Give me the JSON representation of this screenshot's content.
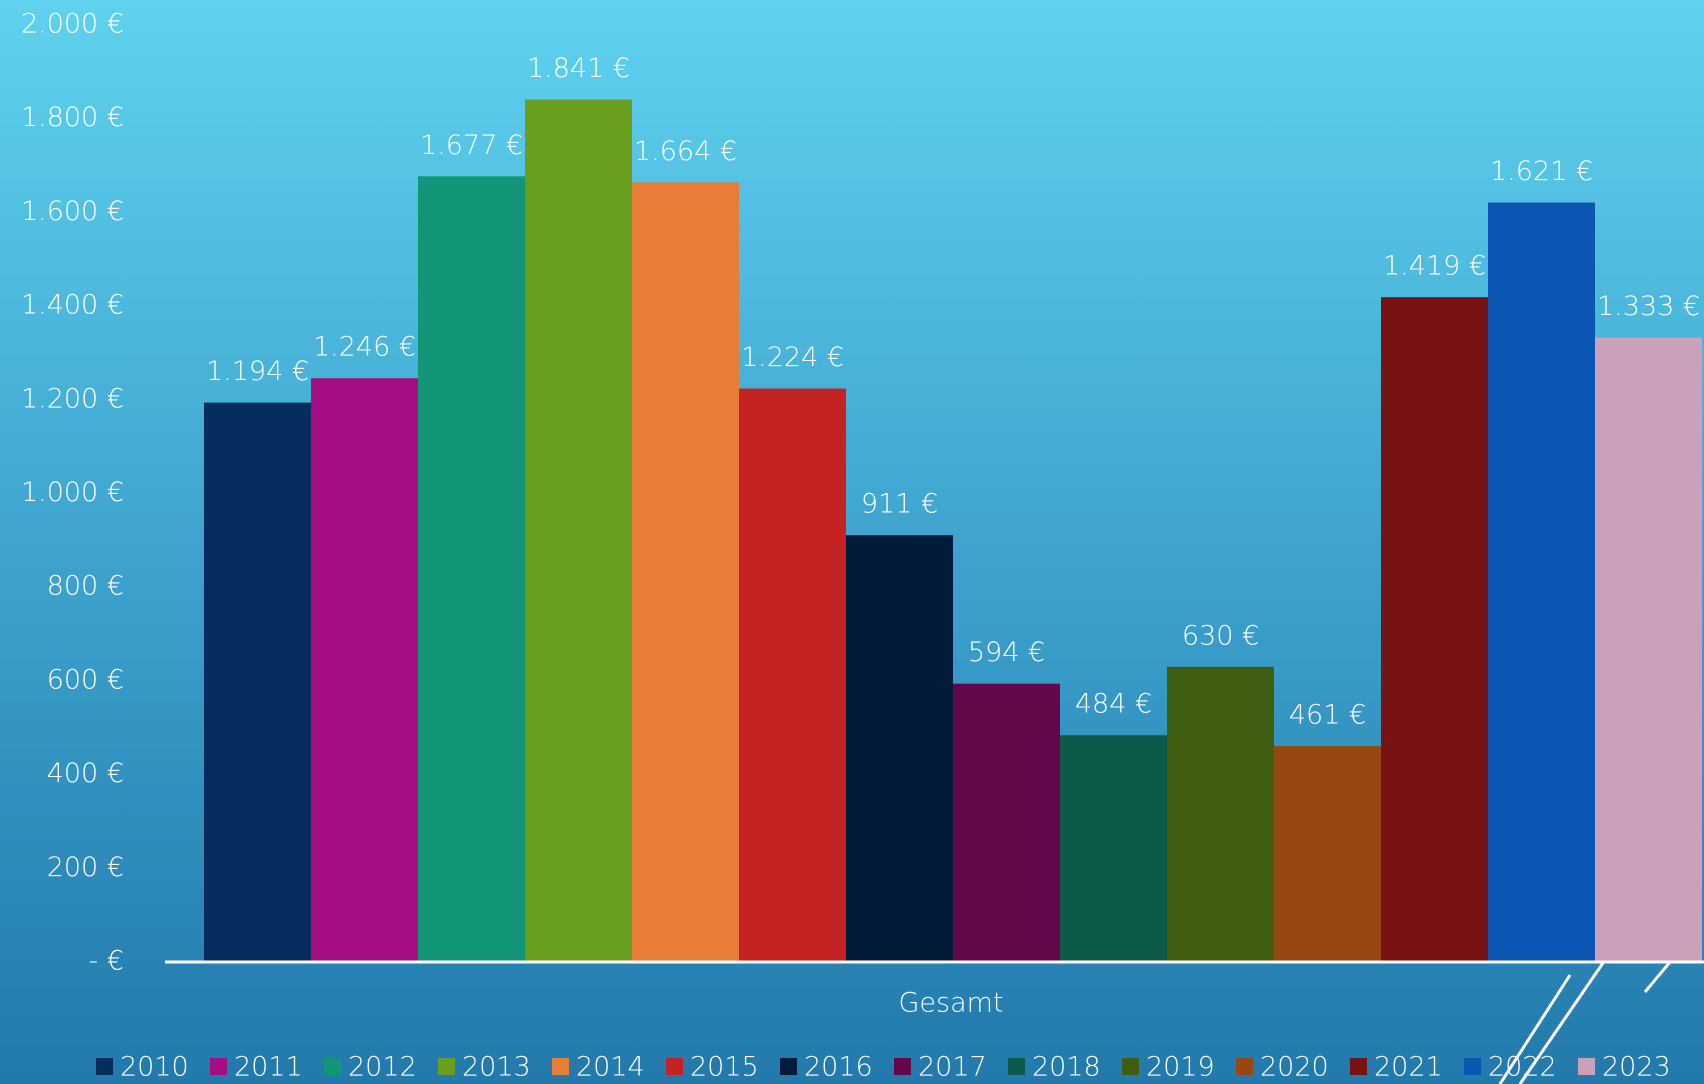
{
  "chart_data": {
    "type": "bar",
    "categories": [
      "Gesamt"
    ],
    "series": [
      {
        "name": "2010",
        "color": "#062d5e",
        "values": [
          1194
        ],
        "value_labels": [
          "1.194 €"
        ]
      },
      {
        "name": "2011",
        "color": "#a30e82",
        "values": [
          1246
        ],
        "value_labels": [
          "1.246 €"
        ]
      },
      {
        "name": "2012",
        "color": "#139678",
        "values": [
          1677
        ],
        "value_labels": [
          "1.677 €"
        ]
      },
      {
        "name": "2013",
        "color": "#6a9e1f",
        "values": [
          1841
        ],
        "value_labels": [
          "1.841 €"
        ]
      },
      {
        "name": "2014",
        "color": "#e87d38",
        "values": [
          1664
        ],
        "value_labels": [
          "1.664 €"
        ]
      },
      {
        "name": "2015",
        "color": "#c52222",
        "values": [
          1224
        ],
        "value_labels": [
          "1.224 €"
        ]
      },
      {
        "name": "2016",
        "color": "#031b3a",
        "values": [
          911
        ],
        "value_labels": [
          "911 €"
        ]
      },
      {
        "name": "2017",
        "color": "#63064a",
        "values": [
          594
        ],
        "value_labels": [
          "594 €"
        ]
      },
      {
        "name": "2018",
        "color": "#0c5a4a",
        "values": [
          484
        ],
        "value_labels": [
          "484 €"
        ]
      },
      {
        "name": "2019",
        "color": "#3f5e12",
        "values": [
          630
        ],
        "value_labels": [
          "630 €"
        ]
      },
      {
        "name": "2020",
        "color": "#974710",
        "values": [
          461
        ],
        "value_labels": [
          "461 €"
        ]
      },
      {
        "name": "2021",
        "color": "#771313",
        "values": [
          1419
        ],
        "value_labels": [
          "1.419 €"
        ]
      },
      {
        "name": "2022",
        "color": "#0b56b2",
        "values": [
          1621
        ],
        "value_labels": [
          "1.621 €"
        ]
      },
      {
        "name": "2023",
        "color": "#cba0ba",
        "values": [
          1333
        ],
        "value_labels": [
          "1.333 €"
        ]
      }
    ],
    "ylim": [
      0,
      2000
    ],
    "yticks": [
      {
        "value": 0,
        "label": "-   €"
      },
      {
        "value": 200,
        "label": "200 €"
      },
      {
        "value": 400,
        "label": "400 €"
      },
      {
        "value": 600,
        "label": "600 €"
      },
      {
        "value": 800,
        "label": "800 €"
      },
      {
        "value": 1000,
        "label": "1.000 €"
      },
      {
        "value": 1200,
        "label": "1.200 €"
      },
      {
        "value": 1400,
        "label": "1.400 €"
      },
      {
        "value": 1600,
        "label": "1.600 €"
      },
      {
        "value": 1800,
        "label": "1.800 €"
      },
      {
        "value": 2000,
        "label": "2.000 €"
      }
    ],
    "grid": false,
    "legend": "bottom"
  }
}
